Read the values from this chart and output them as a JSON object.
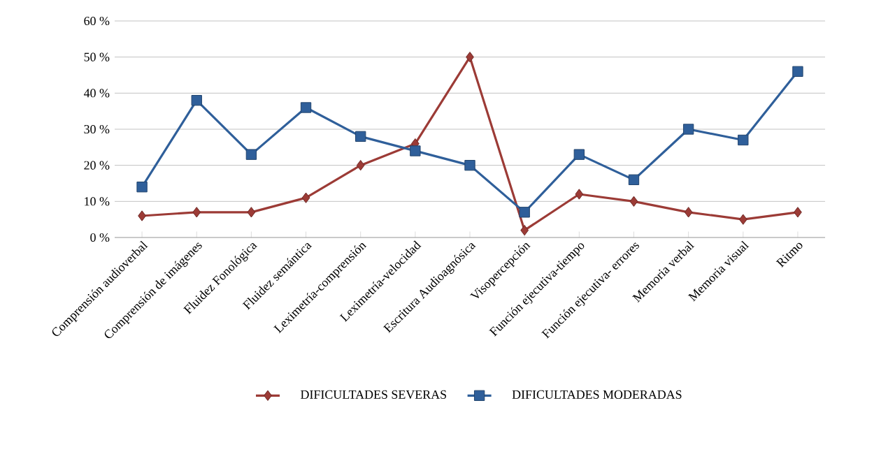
{
  "chart_data": {
    "type": "line",
    "categories": [
      "Comprensión audioverbal",
      "Comprensión de imágenes",
      "Fluidez Fonológica",
      "Fluidez semántica",
      "Leximetría-comprensión",
      "Leximetría-velocidad",
      "Escritura Audioagnósica",
      "Visopercepción",
      "Función ejecutiva-tiempo",
      "Función ejecutiva- errores",
      "Memoria verbal",
      "Memoria visual",
      "Ritmo"
    ],
    "series": [
      {
        "name": "DIFICULTADES SEVERAS",
        "color": "#9c3b36",
        "marker": "diamond",
        "values": [
          6,
          7,
          7,
          11,
          20,
          26,
          50,
          2,
          12,
          10,
          7,
          5,
          7
        ]
      },
      {
        "name": "DIFICULTADES MODERADAS",
        "color": "#2f5f9a",
        "marker": "square",
        "values": [
          14,
          38,
          23,
          36,
          28,
          24,
          20,
          7,
          23,
          16,
          30,
          27,
          46
        ]
      }
    ],
    "ylim": [
      0,
      60
    ],
    "yticks": [
      {
        "value": 0,
        "label": "0 %"
      },
      {
        "value": 10,
        "label": "10 %"
      },
      {
        "value": 20,
        "label": "20 %"
      },
      {
        "value": 30,
        "label": "30 %"
      },
      {
        "value": 40,
        "label": "40 %"
      },
      {
        "value": 50,
        "label": "50 %"
      },
      {
        "value": 60,
        "label": "60 %"
      }
    ],
    "grid": "y",
    "legend": "bottom"
  }
}
